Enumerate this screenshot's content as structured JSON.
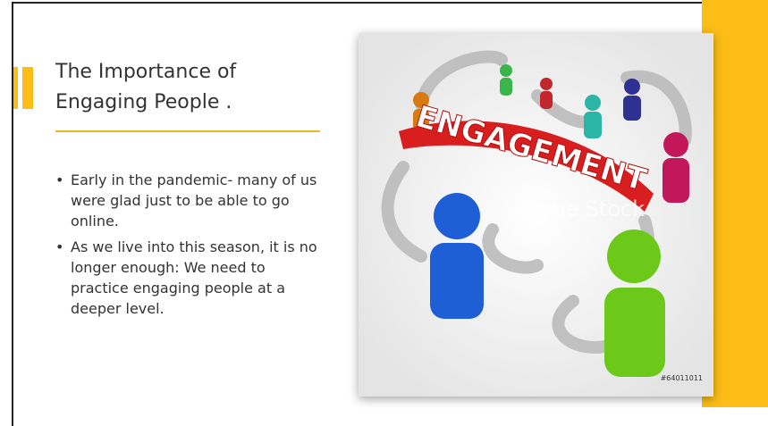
{
  "slide": {
    "title": "The Importance of Engaging People .",
    "bullets": [
      "Early in the pandemic- many of us were glad just to be able to go online.",
      "As we live into this season, it is no longer enough: We need to practice engaging people at a deeper level."
    ],
    "image": {
      "banner": "ENGAGEMENT",
      "watermark": "Adobe Stock",
      "stock_id": "#64011011"
    }
  }
}
